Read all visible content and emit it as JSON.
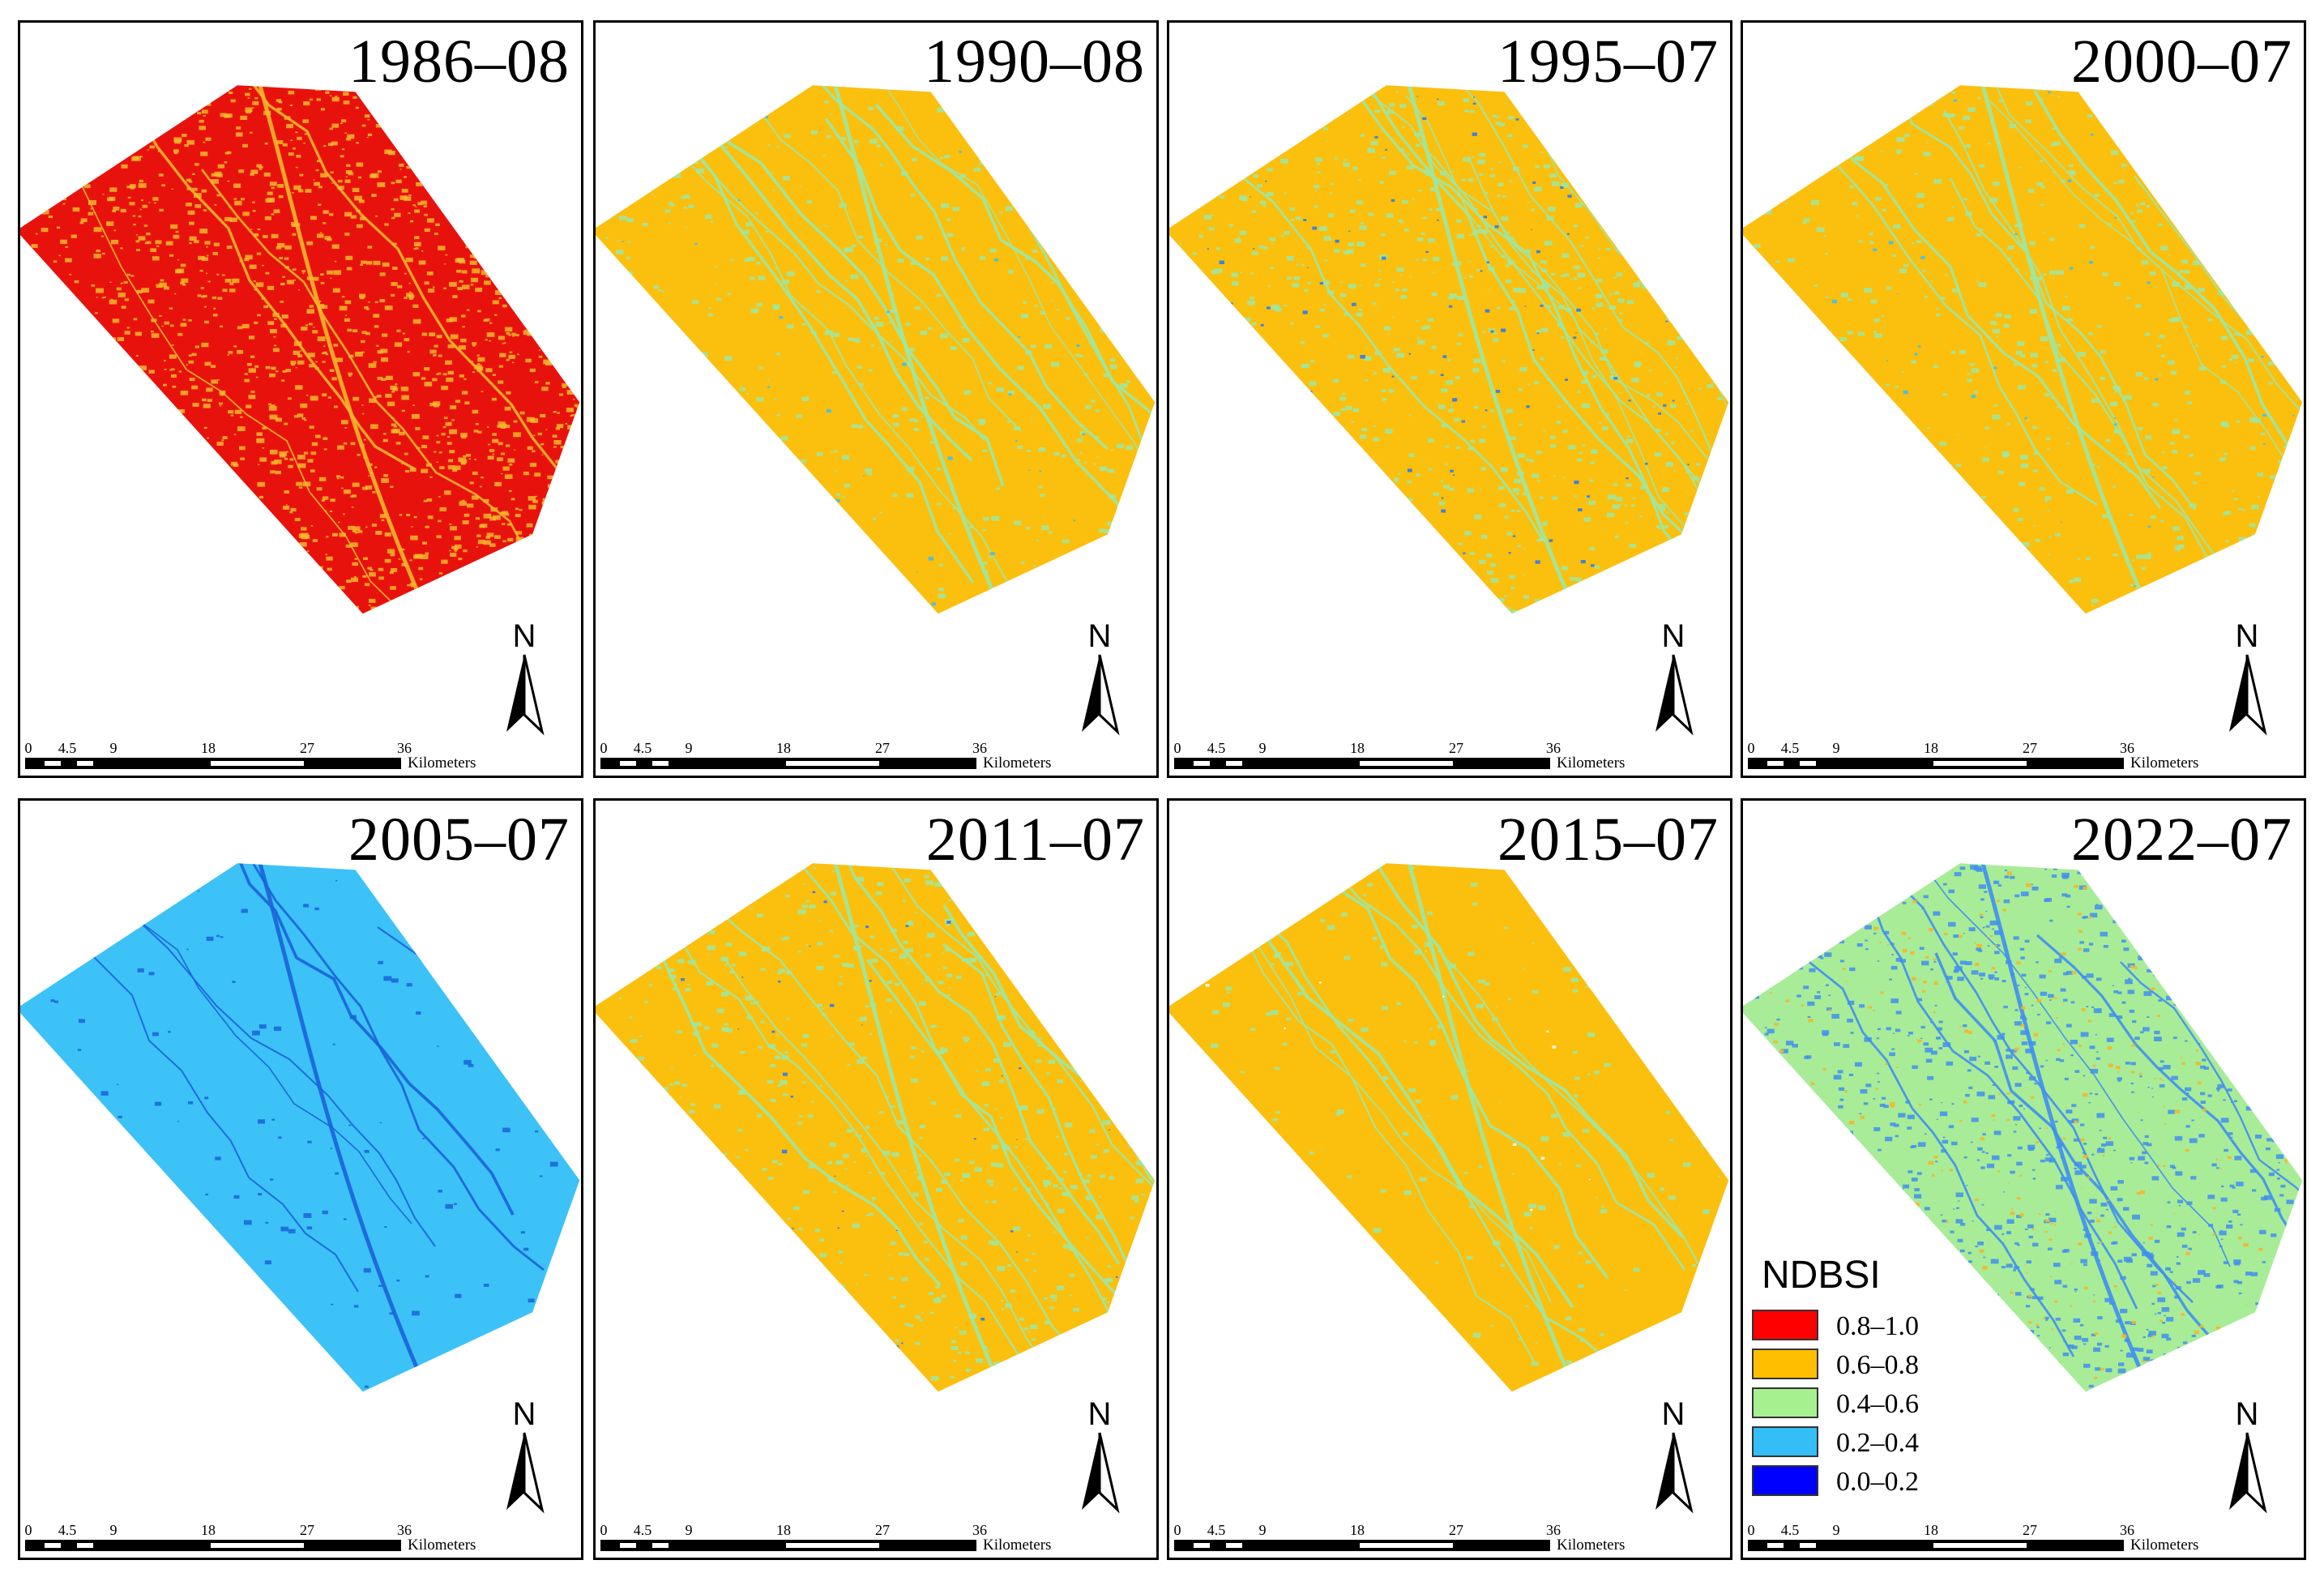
{
  "figure": {
    "panels": [
      {
        "id": "p1",
        "year": "1986–08",
        "base_color": "#e8120c",
        "texture_color": "#f4b72a",
        "texture2_color": "#f4b72a",
        "density": 0.9,
        "blue_density": 0.0
      },
      {
        "id": "p2",
        "year": "1990–08",
        "base_color": "#fbbf0e",
        "texture_color": "#9ee7a2",
        "texture2_color": "#3cc2f0",
        "density": 0.25,
        "blue_density": 0.04
      },
      {
        "id": "p3",
        "year": "1995–07",
        "base_color": "#fbbf0e",
        "texture_color": "#9ee7a2",
        "texture2_color": "#2a7cf0",
        "density": 0.45,
        "blue_density": 0.12
      },
      {
        "id": "p4",
        "year": "2000–07",
        "base_color": "#fbbf0e",
        "texture_color": "#9ee7a2",
        "texture2_color": "#3cc2f0",
        "density": 0.3,
        "blue_density": 0.05
      },
      {
        "id": "p5",
        "year": "2005–07",
        "base_color": "#3cc2f7",
        "texture_color": "#1a63d8",
        "texture2_color": "#1a63d8",
        "density": 0.08,
        "blue_density": 0.0
      },
      {
        "id": "p6",
        "year": "2011–07",
        "base_color": "#fbbf0e",
        "texture_color": "#9ee7a2",
        "texture2_color": "#2a7cf0",
        "density": 0.35,
        "blue_density": 0.06
      },
      {
        "id": "p7",
        "year": "2015–07",
        "base_color": "#fbbf0e",
        "texture_color": "#9ee7a2",
        "texture2_color": "#ffffff",
        "density": 0.12,
        "blue_density": 0.02
      },
      {
        "id": "p8",
        "year": "2022–07",
        "base_color": "#a8ec98",
        "texture_color": "#3f8ff0",
        "texture2_color": "#f4b72a",
        "density": 0.55,
        "blue_density": 0.35
      }
    ],
    "north_label": "N",
    "scale_bar": {
      "ticks": [
        "0",
        "4.5",
        "9",
        "18",
        "27",
        "36"
      ],
      "unit": "Kilometers"
    },
    "legend": {
      "title": "NDBSI",
      "items": [
        {
          "label": "0.8–1.0",
          "color": "#ff0000"
        },
        {
          "label": "0.6–0.8",
          "color": "#ffbf00"
        },
        {
          "label": "0.4–0.6",
          "color": "#a6f090"
        },
        {
          "label": "0.2–0.4",
          "color": "#33bff5"
        },
        {
          "label": "0.0–0.2",
          "color": "#0000ff"
        }
      ]
    }
  }
}
